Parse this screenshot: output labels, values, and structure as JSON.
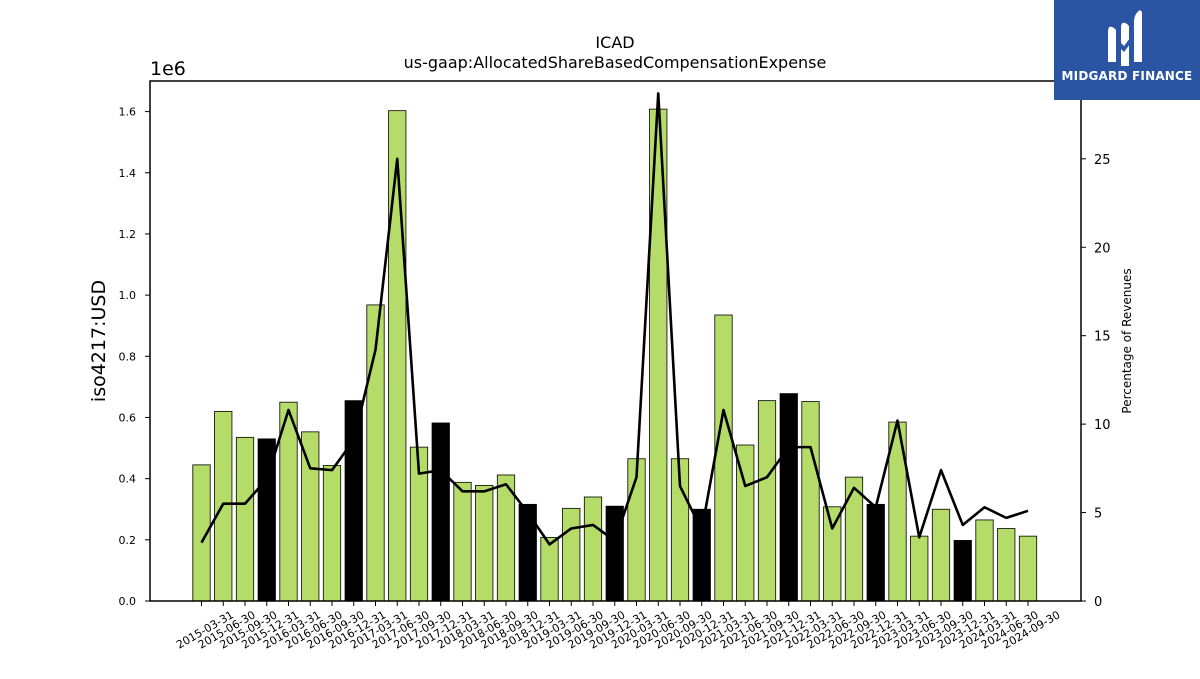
{
  "chart_data": {
    "type": "bar",
    "title": "ICAD",
    "subtitle": "us-gaap:AllocatedShareBasedCompensationExpense",
    "ylabel": "iso4217:USD",
    "y2label": "Percentage of Revenues",
    "y_offset_label": "1e6",
    "ylim": [
      0,
      1700000
    ],
    "y2lim": [
      0,
      29.4
    ],
    "yticks": [
      "0.0",
      "0.2",
      "0.4",
      "0.6",
      "0.8",
      "1.0",
      "1.2",
      "1.4",
      "1.6"
    ],
    "y2ticks": [
      "0",
      "5",
      "10",
      "15",
      "20",
      "25"
    ],
    "categories": [
      "2015-03-31",
      "2015-06-30",
      "2015-09-30",
      "2015-12-31",
      "2016-03-31",
      "2016-06-30",
      "2016-09-30",
      "2016-12-31",
      "2017-03-31",
      "2017-06-30",
      "2017-09-30",
      "2017-12-31",
      "2018-03-31",
      "2018-06-30",
      "2018-09-30",
      "2018-12-31",
      "2019-03-31",
      "2019-06-30",
      "2019-09-30",
      "2019-12-31",
      "2020-03-31",
      "2020-06-30",
      "2020-09-30",
      "2020-12-31",
      "2021-03-31",
      "2021-06-30",
      "2021-09-30",
      "2021-12-31",
      "2022-03-31",
      "2022-06-30",
      "2022-09-30",
      "2022-12-31",
      "2023-03-31",
      "2023-06-30",
      "2023-09-30",
      "2023-12-31",
      "2024-03-31",
      "2024-06-30",
      "2024-09-30"
    ],
    "series": [
      {
        "type": "bar",
        "values": [
          445000,
          620000,
          535000,
          530000,
          650000,
          553000,
          443000,
          655000,
          968000,
          1603000,
          503000,
          582000,
          388000,
          378000,
          412000,
          316000,
          208000,
          303000,
          340000,
          310000,
          465000,
          1608000,
          465000,
          300000,
          935000,
          510000,
          655000,
          678000,
          652000,
          308000,
          405000,
          316000,
          585000,
          212000,
          300000,
          198000,
          265000,
          237000,
          212000
        ],
        "colors": [
          "#b5dc68",
          "#b5dc68",
          "#b5dc68",
          "#000000",
          "#b5dc68",
          "#b5dc68",
          "#b5dc68",
          "#000000",
          "#b5dc68",
          "#b5dc68",
          "#b5dc68",
          "#000000",
          "#b5dc68",
          "#b5dc68",
          "#b5dc68",
          "#000000",
          "#b5dc68",
          "#b5dc68",
          "#b5dc68",
          "#000000",
          "#b5dc68",
          "#b5dc68",
          "#b5dc68",
          "#000000",
          "#b5dc68",
          "#b5dc68",
          "#b5dc68",
          "#000000",
          "#b5dc68",
          "#b5dc68",
          "#b5dc68",
          "#000000",
          "#b5dc68",
          "#b5dc68",
          "#b5dc68",
          "#000000",
          "#b5dc68",
          "#b5dc68",
          "#b5dc68"
        ]
      },
      {
        "type": "line",
        "axis": "right",
        "color": "#000000",
        "values": [
          3.3,
          5.5,
          5.5,
          6.9,
          10.8,
          7.5,
          7.4,
          9.1,
          14.2,
          25.0,
          7.2,
          7.4,
          6.2,
          6.2,
          6.6,
          5.0,
          3.2,
          4.1,
          4.3,
          3.4,
          7.0,
          28.7,
          6.5,
          4.0,
          10.8,
          6.5,
          7.0,
          8.7,
          8.7,
          4.1,
          6.4,
          5.3,
          10.2,
          3.6,
          7.4,
          4.3,
          5.3,
          4.7,
          5.1
        ]
      }
    ],
    "grid": false
  },
  "logo": {
    "text": "MIDGARD FINANCE",
    "icon": "midgard-m-logo-icon",
    "background": "#2b55a3"
  }
}
